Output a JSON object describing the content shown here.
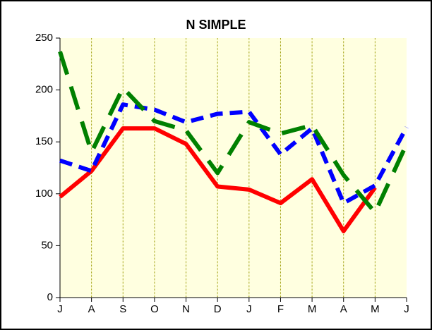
{
  "chart_data": {
    "type": "line",
    "title": "N SIMPLE",
    "categories": [
      "J",
      "A",
      "S",
      "O",
      "N",
      "D",
      "J",
      "F",
      "M",
      "A",
      "M",
      "J"
    ],
    "series": [
      {
        "color": "#ff0000",
        "line_style": "solid",
        "values": [
          97,
          122,
          163,
          163,
          148,
          107,
          104,
          91,
          114,
          64,
          106,
          null
        ]
      },
      {
        "color": "#0000ff",
        "line_style": "dashed",
        "values": [
          132,
          122,
          186,
          181,
          169,
          177,
          179,
          138,
          163,
          91,
          108,
          164
        ]
      },
      {
        "color": "#008000",
        "line_style": "long-dashed",
        "values": [
          237,
          140,
          202,
          170,
          161,
          120,
          169,
          158,
          166,
          118,
          82,
          148
        ]
      }
    ],
    "ylim": [
      0,
      250
    ],
    "yticks": [
      0,
      50,
      100,
      150,
      200,
      250
    ],
    "grid": "vertical"
  }
}
